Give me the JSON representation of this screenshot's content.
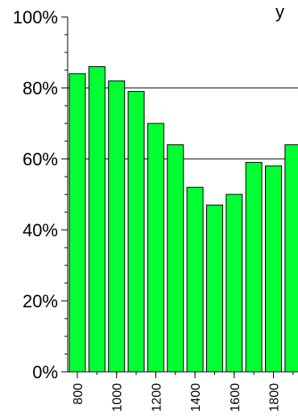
{
  "chart_data": {
    "type": "bar",
    "title": "y",
    "xlabel": "",
    "ylabel": "",
    "bar_color": "#00ff33",
    "bar_edge_color": "#000000",
    "grid_color": "#000000",
    "ylim": [
      0,
      100
    ],
    "y_ticks": [
      0,
      20,
      40,
      60,
      80,
      100
    ],
    "y_tick_labels": [
      "0%",
      "20%",
      "40%",
      "60%",
      "80%",
      "100%"
    ],
    "y_gridlines": [
      60,
      80
    ],
    "x_tick_labels": [
      "800",
      "1000",
      "1200",
      "1400",
      "1600",
      "1800"
    ],
    "categories": [
      "800",
      "900",
      "1000",
      "1100",
      "1200",
      "1300",
      "1400",
      "1500",
      "1600",
      "1700",
      "1800",
      "1900"
    ],
    "values": [
      84,
      86,
      82,
      79,
      70,
      64,
      52,
      47,
      50,
      59,
      58,
      64
    ]
  }
}
